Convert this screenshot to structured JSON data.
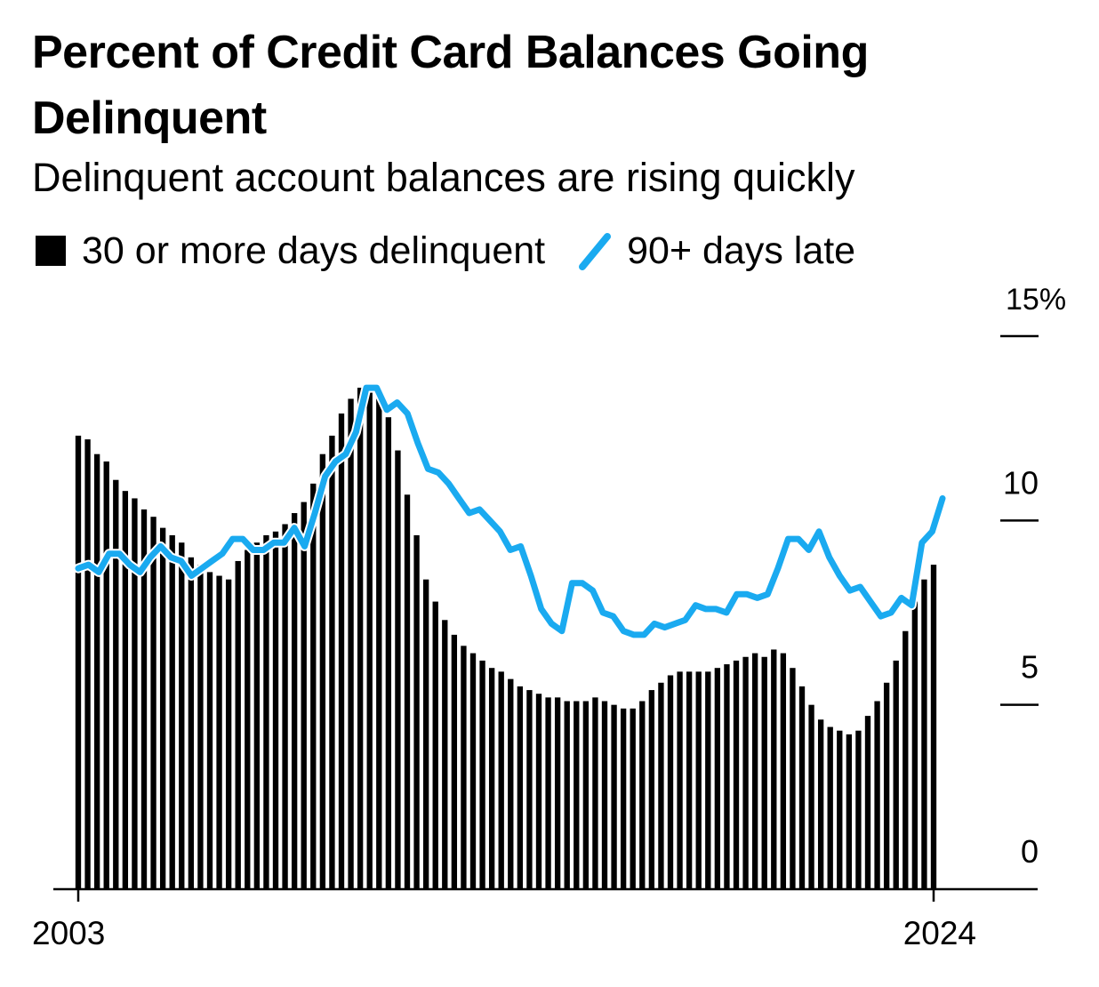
{
  "title": "Percent of Credit Card Balances Going Delinquent",
  "subtitle": "Delinquent account balances are rising quickly",
  "legend": {
    "bars_label": "30 or more days delinquent",
    "line_label": "90+ days late"
  },
  "colors": {
    "bars": "#000000",
    "line": "#1aaaf0"
  },
  "chart_data": {
    "type": "bar",
    "title": "Percent of Credit Card Balances Going Delinquent",
    "subtitle": "Delinquent account balances are rising quickly",
    "xlabel": "",
    "ylabel": "",
    "x_tick_labels": [
      "2003",
      "2024"
    ],
    "y_ticks": [
      0,
      5,
      10,
      15
    ],
    "y_tick_labels": [
      "0",
      "5",
      "10",
      "15%"
    ],
    "ylim": [
      0,
      15
    ],
    "grid": false,
    "legend_position": "top-left",
    "series": [
      {
        "name": "30 or more days delinquent",
        "type": "bar",
        "values": [
          12.3,
          12.2,
          11.8,
          11.6,
          11.1,
          10.8,
          10.6,
          10.3,
          10.1,
          9.8,
          9.6,
          9.4,
          9.0,
          8.8,
          8.6,
          8.5,
          8.4,
          8.9,
          9.2,
          9.4,
          9.6,
          9.7,
          9.9,
          10.2,
          10.5,
          11.0,
          11.8,
          12.3,
          12.9,
          13.3,
          13.6,
          13.6,
          13.3,
          12.8,
          11.9,
          10.7,
          9.6,
          8.4,
          7.8,
          7.3,
          6.9,
          6.6,
          6.4,
          6.2,
          6.0,
          5.9,
          5.7,
          5.5,
          5.4,
          5.3,
          5.2,
          5.2,
          5.1,
          5.1,
          5.1,
          5.2,
          5.1,
          5.0,
          4.9,
          4.9,
          5.1,
          5.4,
          5.6,
          5.8,
          5.9,
          5.9,
          5.9,
          5.9,
          6.0,
          6.1,
          6.2,
          6.3,
          6.4,
          6.3,
          6.5,
          6.4,
          6.0,
          5.5,
          5.0,
          4.6,
          4.4,
          4.3,
          4.2,
          4.3,
          4.7,
          5.1,
          5.6,
          6.2,
          7.0,
          7.8,
          8.4,
          8.8
        ]
      },
      {
        "name": "90+ days late",
        "type": "line",
        "values": [
          8.7,
          8.8,
          8.6,
          9.1,
          9.1,
          8.8,
          8.6,
          9.0,
          9.3,
          9.0,
          8.9,
          8.5,
          8.7,
          8.9,
          9.1,
          9.5,
          9.5,
          9.2,
          9.2,
          9.4,
          9.4,
          9.8,
          9.3,
          10.2,
          11.2,
          11.6,
          11.8,
          12.4,
          13.6,
          13.6,
          13.0,
          13.2,
          12.9,
          12.1,
          11.4,
          11.3,
          11.0,
          10.6,
          10.2,
          10.3,
          10.0,
          9.7,
          9.2,
          9.3,
          8.5,
          7.6,
          7.2,
          7.0,
          8.3,
          8.3,
          8.1,
          7.5,
          7.4,
          7.0,
          6.9,
          6.9,
          7.2,
          7.1,
          7.2,
          7.3,
          7.7,
          7.6,
          7.6,
          7.5,
          8.0,
          8.0,
          7.9,
          8.0,
          8.7,
          9.5,
          9.5,
          9.2,
          9.7,
          9.0,
          8.5,
          8.1,
          8.2,
          7.8,
          7.4,
          7.5,
          7.9,
          7.7,
          9.4,
          9.7,
          10.6
        ]
      }
    ]
  }
}
